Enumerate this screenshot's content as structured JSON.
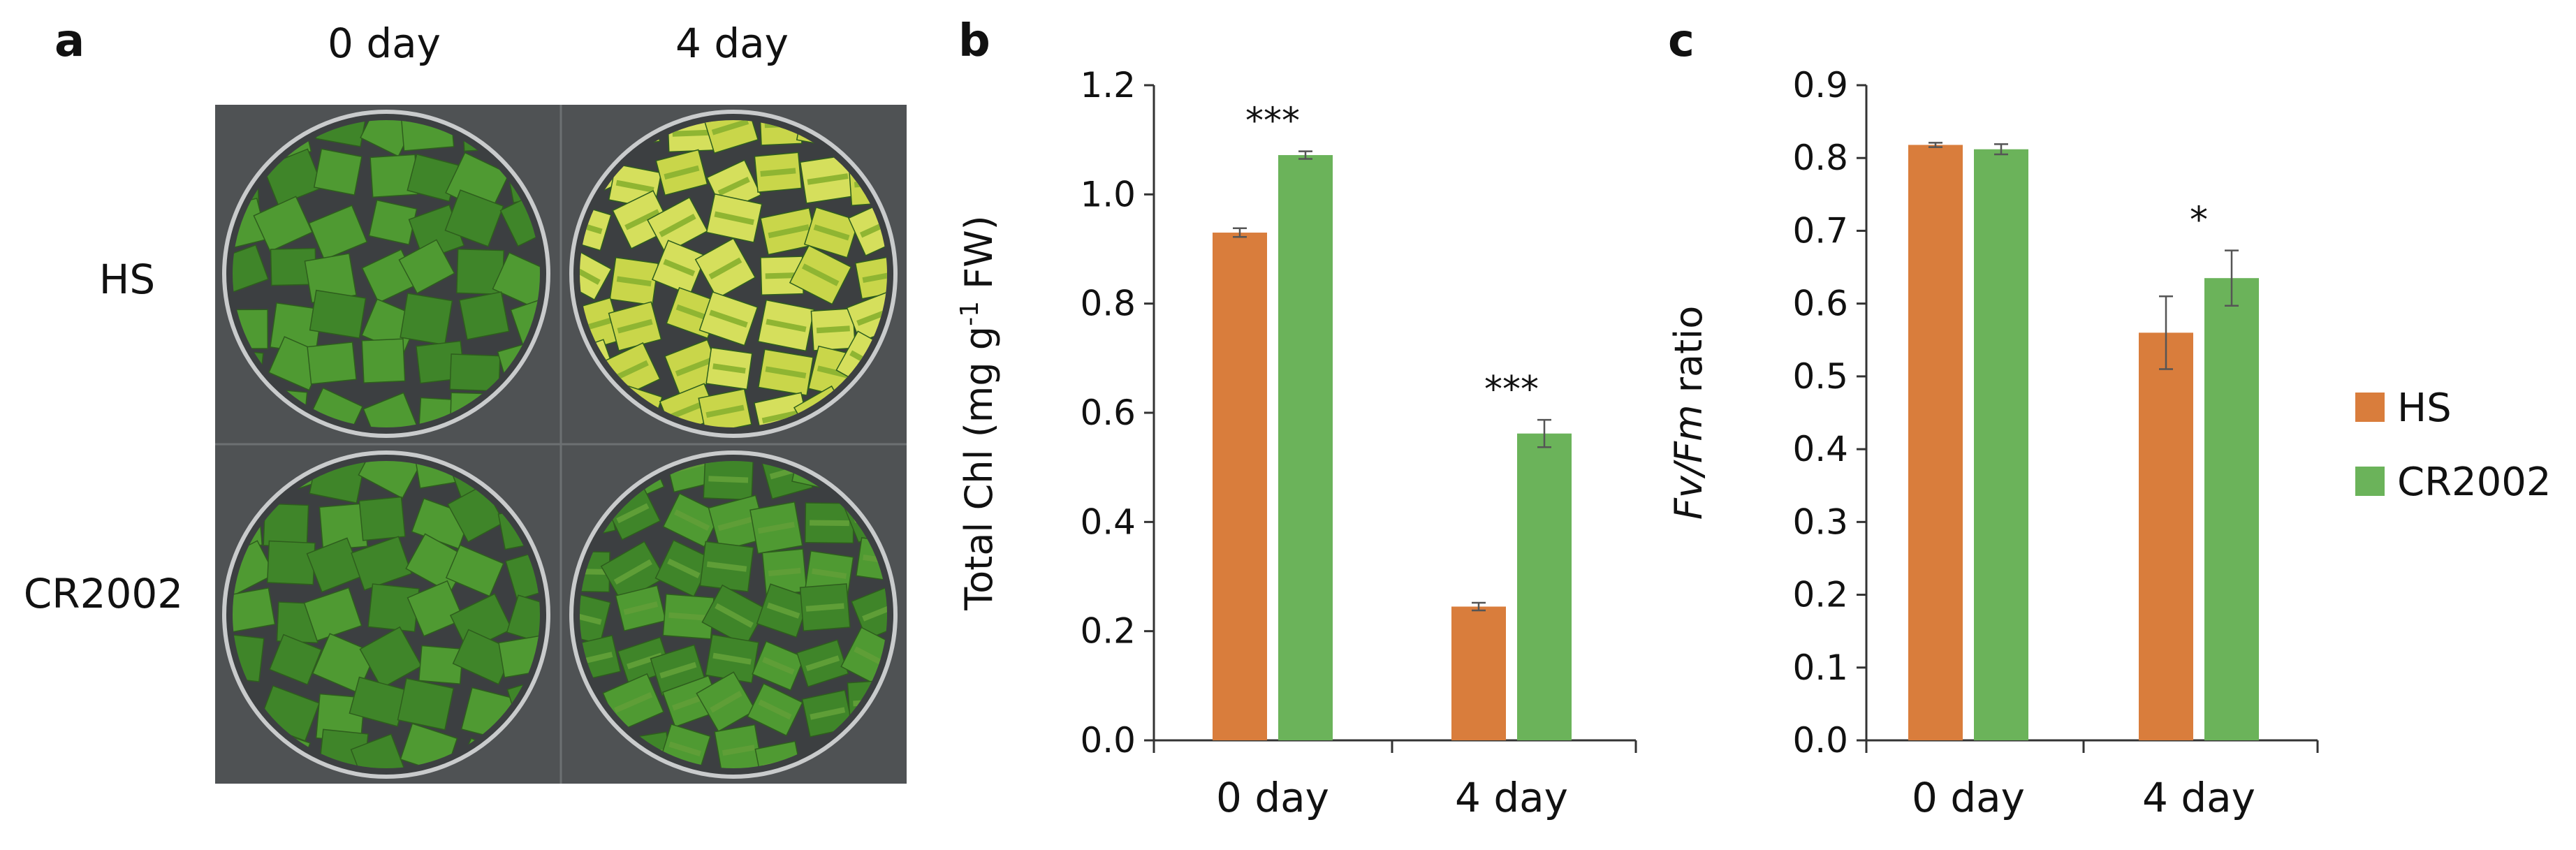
{
  "figure": {
    "panel_a": {
      "letter": "a",
      "col_labels": [
        "0 day",
        "4 day"
      ],
      "row_labels": [
        "HS",
        "CR2002"
      ],
      "colors": {
        "background": "#4f5254",
        "dish_rim": "#c9cbcc",
        "leaf_green": "#4f9a32",
        "leaf_green_dark": "#3f8529",
        "leaf_yellow": "#c9d64a",
        "leaf_yellow_streak": "#8fb532"
      }
    },
    "legend": {
      "items": [
        {
          "name": "HS",
          "color": "#d97d3c"
        },
        {
          "name": "CR2002",
          "color": "#6bb35a"
        }
      ]
    }
  },
  "chart_data": [
    {
      "panel": "b",
      "type": "bar",
      "title": "",
      "xlabel": "",
      "ylabel": "Total Chl (mg g",
      "ylabel_sup": "-1",
      "ylabel_suffix": " FW)",
      "categories": [
        "0 day",
        "4 day"
      ],
      "ylim": [
        0,
        1.2
      ],
      "yticks": [
        "0.0",
        "0.2",
        "0.4",
        "0.6",
        "0.8",
        "1.0",
        "1.2"
      ],
      "ytick_values": [
        0,
        0.2,
        0.4,
        0.6,
        0.8,
        1.0,
        1.2
      ],
      "series": [
        {
          "name": "HS",
          "color": "#d97d3c",
          "values": [
            0.93,
            0.245
          ],
          "errors": [
            0.008,
            0.007
          ]
        },
        {
          "name": "CR2002",
          "color": "#6bb35a",
          "values": [
            1.072,
            0.562
          ],
          "errors": [
            0.007,
            0.025
          ]
        }
      ],
      "annotations": [
        "***",
        "***"
      ],
      "grid": false
    },
    {
      "panel": "c",
      "type": "bar",
      "title": "",
      "xlabel": "",
      "ylabel_italic": "Fv/Fm",
      "ylabel_suffix": " ratio",
      "categories": [
        "0 day",
        "4 day"
      ],
      "ylim": [
        0,
        0.9
      ],
      "yticks": [
        "0.0",
        "0.1",
        "0.2",
        "0.3",
        "0.4",
        "0.5",
        "0.6",
        "0.7",
        "0.8",
        "0.9"
      ],
      "ytick_values": [
        0,
        0.1,
        0.2,
        0.3,
        0.4,
        0.5,
        0.6,
        0.7,
        0.8,
        0.9
      ],
      "series": [
        {
          "name": "HS",
          "color": "#d97d3c",
          "values": [
            0.818,
            0.56
          ],
          "errors": [
            0.003,
            0.05
          ]
        },
        {
          "name": "CR2002",
          "color": "#6bb35a",
          "values": [
            0.812,
            0.635
          ],
          "errors": [
            0.007,
            0.038
          ]
        }
      ],
      "annotations": [
        "",
        "*"
      ],
      "grid": false
    }
  ]
}
